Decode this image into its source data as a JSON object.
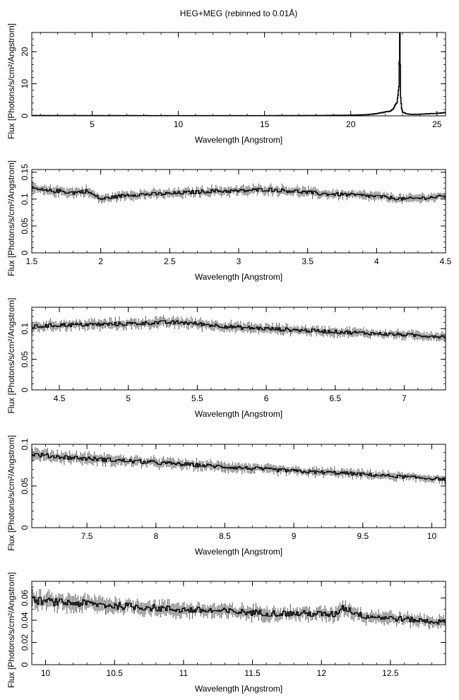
{
  "figure": {
    "title": "HEG+MEG (rebinned to 0.01Å)"
  },
  "chart_data": [
    {
      "type": "line",
      "style": "histogram-step",
      "xlabel": "Wavelength [Angstrom]",
      "ylabel": "Flux [Photons/s/cm²/Angstrom]",
      "xlim": [
        1.5,
        25.5
      ],
      "ylim": [
        0,
        26
      ],
      "xticks": [
        5,
        10,
        15,
        20,
        25
      ],
      "yticks": [
        0,
        10,
        20
      ],
      "series": [
        {
          "x": [
            1.5,
            5,
            10,
            15,
            18,
            20,
            21,
            21.5,
            22,
            22.3,
            22.5,
            22.7,
            22.8,
            22.85,
            22.9,
            22.95,
            23.0,
            23.2,
            23.5,
            24,
            25,
            25.5
          ],
          "y": [
            0.1,
            0.08,
            0.06,
            0.06,
            0.1,
            0.2,
            0.4,
            0.7,
            1.2,
            1.5,
            2.5,
            4.5,
            10,
            25.5,
            6,
            2.5,
            1.2,
            0.7,
            0.45,
            0.5,
            0.8,
            1.0
          ]
        }
      ]
    },
    {
      "type": "line",
      "style": "histogram-step-with-errors",
      "xlabel": "Wavelength [Angstrom]",
      "ylabel": "Flux [Photons/s/cm²/Angstrom]",
      "xlim": [
        1.5,
        4.5
      ],
      "ylim": [
        0,
        0.155
      ],
      "xticks": [
        1.5,
        2,
        2.5,
        3,
        3.5,
        4,
        4.5
      ],
      "yticks": [
        0,
        0.05,
        0.1,
        0.15
      ],
      "series": [
        {
          "x": [
            1.5,
            1.6,
            1.7,
            1.8,
            1.9,
            2.0,
            2.2,
            2.5,
            2.8,
            3.0,
            3.2,
            3.4,
            3.6,
            3.8,
            4.0,
            4.2,
            4.5
          ],
          "y": [
            0.12,
            0.115,
            0.115,
            0.112,
            0.115,
            0.1,
            0.108,
            0.11,
            0.115,
            0.115,
            0.118,
            0.115,
            0.11,
            0.108,
            0.105,
            0.1,
            0.105
          ]
        }
      ]
    },
    {
      "type": "line",
      "style": "histogram-step-with-errors",
      "xlabel": "Wavelength [Angstrom]",
      "ylabel": "Flux [Photons/s/cm²/Angstrom]",
      "xlim": [
        4.3,
        7.3
      ],
      "ylim": [
        0,
        0.135
      ],
      "xticks": [
        4.5,
        5,
        5.5,
        6,
        6.5,
        7
      ],
      "yticks": [
        0,
        0.05,
        0.1
      ],
      "series": [
        {
          "x": [
            4.3,
            4.5,
            4.8,
            5.0,
            5.2,
            5.4,
            5.6,
            5.8,
            6.0,
            6.2,
            6.4,
            6.6,
            6.8,
            7.0,
            7.3
          ],
          "y": [
            0.103,
            0.106,
            0.107,
            0.108,
            0.11,
            0.11,
            0.106,
            0.102,
            0.1,
            0.098,
            0.096,
            0.094,
            0.092,
            0.09,
            0.087
          ]
        }
      ]
    },
    {
      "type": "line",
      "style": "histogram-step-with-errors",
      "xlabel": "Wavelength [Angstrom]",
      "ylabel": "Flux [Photons/s/cm²/Angstrom]",
      "xlim": [
        7.1,
        10.1
      ],
      "ylim": [
        0,
        0.1
      ],
      "xticks": [
        7.5,
        8,
        8.5,
        9,
        9.5,
        10
      ],
      "yticks": [
        0,
        0.05,
        0.1
      ],
      "series": [
        {
          "x": [
            7.1,
            7.3,
            7.5,
            7.7,
            7.9,
            8.1,
            8.3,
            8.5,
            8.7,
            8.9,
            9.1,
            9.3,
            9.5,
            9.7,
            9.9,
            10.1
          ],
          "y": [
            0.088,
            0.085,
            0.083,
            0.081,
            0.079,
            0.077,
            0.075,
            0.073,
            0.071,
            0.069,
            0.067,
            0.066,
            0.064,
            0.062,
            0.06,
            0.058
          ]
        }
      ]
    },
    {
      "type": "line",
      "style": "histogram-step-with-errors",
      "xlabel": "Wavelength [Angstrom]",
      "ylabel": "Flux [Photons/s/cm²/Angstrom]",
      "xlim": [
        9.9,
        12.9
      ],
      "ylim": [
        0,
        0.075
      ],
      "xticks": [
        10,
        10.5,
        11,
        11.5,
        12,
        12.5
      ],
      "yticks": [
        0,
        0.02,
        0.04,
        0.06
      ],
      "series": [
        {
          "x": [
            9.9,
            10.1,
            10.3,
            10.5,
            10.7,
            10.9,
            11.1,
            11.3,
            11.5,
            11.7,
            11.9,
            12.1,
            12.15,
            12.3,
            12.5,
            12.7,
            12.9
          ],
          "y": [
            0.058,
            0.056,
            0.055,
            0.053,
            0.052,
            0.05,
            0.049,
            0.048,
            0.047,
            0.046,
            0.046,
            0.045,
            0.052,
            0.044,
            0.042,
            0.04,
            0.038
          ]
        }
      ]
    }
  ]
}
